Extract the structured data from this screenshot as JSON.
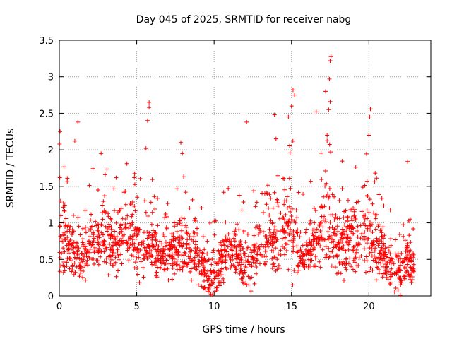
{
  "chart_data": {
    "type": "scatter",
    "title": "Day 045 of 2025, SRMTID for receiver nabg",
    "xlabel": "GPS time / hours",
    "ylabel": "SRMTID / TECUs",
    "xlim": [
      0,
      24
    ],
    "ylim": [
      0,
      3.5
    ],
    "x_ticks": [
      0,
      5,
      10,
      15,
      20
    ],
    "y_ticks": [
      0,
      0.5,
      1,
      1.5,
      2,
      2.5,
      3,
      3.5
    ],
    "x_tick_labels": [
      "0",
      "5",
      "10",
      "15",
      "20"
    ],
    "y_tick_labels": [
      "0",
      "0.5",
      "1",
      "1.5",
      "2",
      "2.5",
      "3",
      "3.5"
    ],
    "grid": true,
    "marker": "+",
    "marker_color": "#ff0000",
    "point_count": 1800,
    "envelope_hours": [
      0,
      0.5,
      1,
      1.5,
      2,
      2.5,
      3,
      3.5,
      4,
      4.5,
      5,
      5.5,
      6,
      6.5,
      7,
      7.5,
      8,
      8.5,
      9,
      9.5,
      10,
      10.5,
      11,
      11.5,
      12,
      12.5,
      13,
      13.5,
      14,
      14.5,
      15,
      15.5,
      16,
      16.5,
      17,
      17.5,
      18,
      18.5,
      19,
      19.5,
      20,
      20.5,
      21,
      21.5,
      22,
      22.5,
      23
    ],
    "envelope_mean": [
      0.85,
      0.7,
      0.65,
      0.55,
      0.75,
      0.8,
      0.8,
      0.7,
      0.75,
      0.8,
      0.75,
      0.65,
      0.7,
      0.55,
      0.6,
      0.55,
      0.65,
      0.6,
      0.55,
      0.3,
      0.25,
      0.5,
      0.65,
      0.6,
      0.45,
      0.55,
      0.6,
      0.7,
      0.75,
      0.9,
      1.0,
      0.55,
      0.6,
      0.75,
      0.95,
      1.0,
      0.7,
      0.75,
      0.8,
      0.85,
      0.85,
      0.65,
      0.5,
      0.4,
      0.35,
      0.5,
      0.3
    ],
    "envelope_spread": [
      0.5,
      0.35,
      0.4,
      0.3,
      0.35,
      0.45,
      0.45,
      0.35,
      0.4,
      0.4,
      0.35,
      0.35,
      0.4,
      0.3,
      0.3,
      0.35,
      0.4,
      0.35,
      0.35,
      0.3,
      0.3,
      0.35,
      0.35,
      0.35,
      0.3,
      0.35,
      0.35,
      0.4,
      0.45,
      0.5,
      0.6,
      0.35,
      0.35,
      0.45,
      0.55,
      0.55,
      0.45,
      0.45,
      0.45,
      0.45,
      0.5,
      0.4,
      0.3,
      0.3,
      0.3,
      0.35,
      0.25
    ],
    "spikes": [
      {
        "x": 0.05,
        "y": 2.25
      },
      {
        "x": 1.2,
        "y": 2.38
      },
      {
        "x": 1.0,
        "y": 2.12
      },
      {
        "x": 2.7,
        "y": 1.95
      },
      {
        "x": 5.8,
        "y": 2.65
      },
      {
        "x": 5.8,
        "y": 2.58
      },
      {
        "x": 5.7,
        "y": 2.4
      },
      {
        "x": 5.6,
        "y": 2.02
      },
      {
        "x": 7.85,
        "y": 2.1
      },
      {
        "x": 7.95,
        "y": 1.95
      },
      {
        "x": 12.1,
        "y": 2.38
      },
      {
        "x": 13.9,
        "y": 2.48
      },
      {
        "x": 14.0,
        "y": 2.15
      },
      {
        "x": 15.1,
        "y": 2.82
      },
      {
        "x": 15.2,
        "y": 2.75
      },
      {
        "x": 15.0,
        "y": 2.6
      },
      {
        "x": 14.8,
        "y": 2.45
      },
      {
        "x": 16.6,
        "y": 2.52
      },
      {
        "x": 17.2,
        "y": 2.8
      },
      {
        "x": 17.55,
        "y": 3.28
      },
      {
        "x": 17.5,
        "y": 3.22
      },
      {
        "x": 17.45,
        "y": 2.97
      },
      {
        "x": 17.5,
        "y": 2.66
      },
      {
        "x": 17.4,
        "y": 2.55
      },
      {
        "x": 17.3,
        "y": 2.2
      },
      {
        "x": 20.1,
        "y": 2.56
      },
      {
        "x": 20.05,
        "y": 2.45
      },
      {
        "x": 20.0,
        "y": 2.2
      },
      {
        "x": 22.5,
        "y": 1.84
      }
    ]
  }
}
